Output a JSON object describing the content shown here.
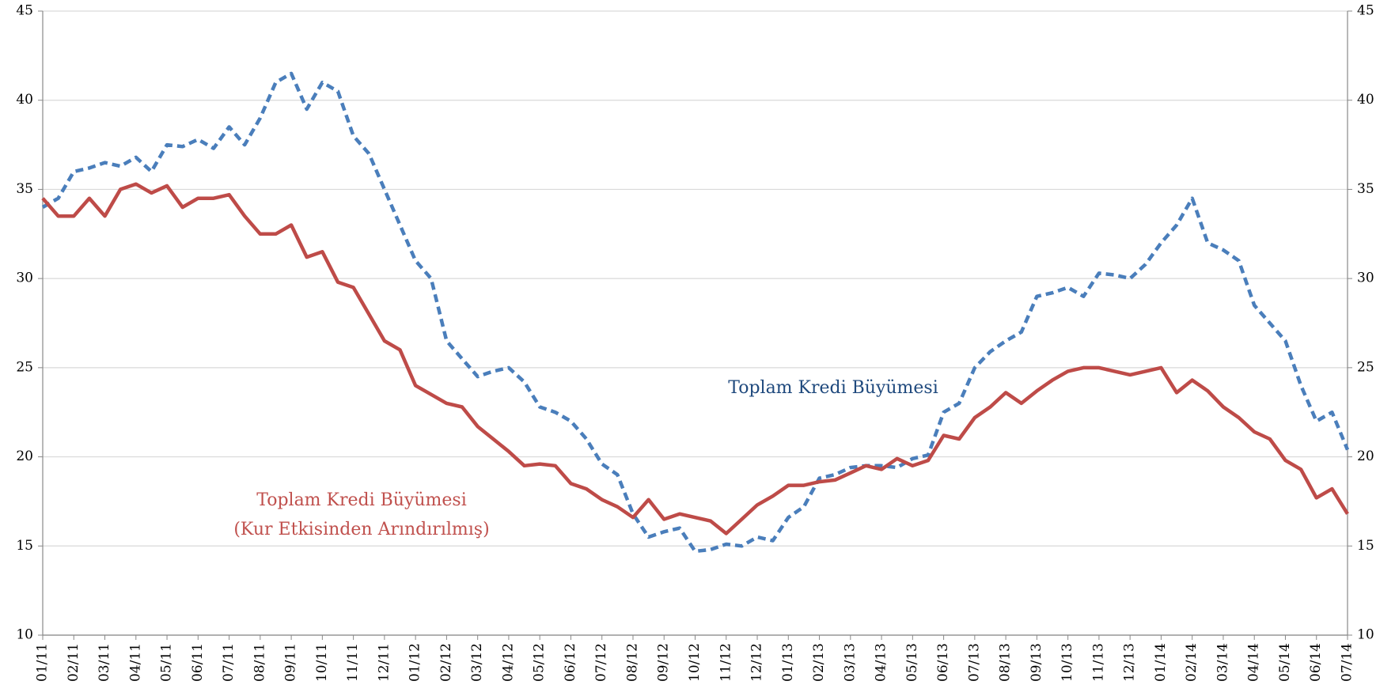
{
  "chart_data": {
    "type": "line",
    "categories": [
      "01/11",
      null,
      "02/11",
      null,
      "03/11",
      null,
      "04/11",
      null,
      "05/11",
      null,
      "06/11",
      null,
      "07/11",
      null,
      "08/11",
      null,
      "09/11",
      null,
      "10/11",
      null,
      "11/11",
      null,
      "12/11",
      null,
      "01/12",
      null,
      "02/12",
      null,
      "03/12",
      null,
      "04/12",
      null,
      "05/12",
      null,
      "06/12",
      null,
      "07/12",
      null,
      "08/12",
      null,
      "09/12",
      null,
      "10/12",
      null,
      "11/12",
      null,
      "12/12",
      null,
      "01/13",
      null,
      "02/13",
      null,
      "03/13",
      null,
      "04/13",
      null,
      "05/13",
      null,
      "06/13",
      null,
      "07/13",
      null,
      "08/13",
      null,
      "09/13",
      null,
      "10/13",
      null,
      "11/13",
      null,
      "12/13",
      null,
      "01/14",
      null,
      "02/14",
      null,
      "03/14",
      null,
      "04/14",
      null,
      "05/14",
      null,
      "06/14",
      null,
      "07/14"
    ],
    "series": [
      {
        "color": "#4a7ebb",
        "dashed": true,
        "axis": "y2",
        "values": [
          34,
          34.5,
          36,
          36.2,
          36.5,
          36.3,
          36.8,
          36,
          37.5,
          37.4,
          37.8,
          37.3,
          38.5,
          37.5,
          39,
          41,
          41.5,
          39.5,
          41,
          40.5,
          38,
          37,
          35,
          33,
          31,
          30,
          26.5,
          25.5,
          24.5,
          24.8,
          25,
          24.2,
          22.8,
          22.5,
          22,
          21,
          19.6,
          19,
          16.8,
          15.5,
          15.8,
          16,
          14.7,
          14.8,
          15.1,
          15,
          15.5,
          15.3,
          16.6,
          17.2,
          18.8,
          19,
          19.4,
          19.5,
          19.5,
          19.4,
          19.9,
          20.1,
          22.5,
          23,
          25,
          25.9,
          26.5,
          27,
          29,
          29.2,
          29.5,
          29,
          30.3,
          30.2,
          30,
          30.8,
          32,
          33,
          34.5,
          32,
          31.6,
          31,
          28.5,
          27.5,
          26.5,
          24,
          22,
          22.5,
          20.4
        ]
      },
      {
        "color": "#be4b48",
        "dashed": false,
        "values": [
          34.5,
          33.5,
          33.5,
          34.5,
          33.5,
          35,
          35.3,
          34.8,
          35.2,
          34,
          34.5,
          34.5,
          34.7,
          33.5,
          32.5,
          32.5,
          33,
          31.2,
          31.5,
          29.8,
          29.5,
          28,
          26.5,
          26,
          24,
          23.5,
          23,
          22.8,
          21.7,
          21,
          20.3,
          19.5,
          19.6,
          19.5,
          18.5,
          18.2,
          17.6,
          17.2,
          16.6,
          17.6,
          16.5,
          16.8,
          16.6,
          16.4,
          15.7,
          16.5,
          17.3,
          17.8,
          18.4,
          18.4,
          18.6,
          18.7,
          19.1,
          19.5,
          19.3,
          19.9,
          19.5,
          19.8,
          21.2,
          21,
          22.2,
          22.8,
          23.6,
          23,
          23.7,
          24.3,
          24.8,
          25,
          25,
          24.8,
          24.6,
          24.8,
          25,
          23.6,
          24.3,
          23.7,
          22.8,
          22.2,
          21.4,
          21,
          19.8,
          19.3,
          17.7,
          18.2,
          16.8
        ]
      }
    ],
    "annotations": [
      {
        "text": "Toplam Kredi Büyümesi",
        "color": "#1f497d"
      },
      {
        "text": "Toplam Kredi Büyümesi",
        "color": "#c0504d"
      },
      {
        "text": "(Kur Etkisinden Arındırılmış)",
        "color": "#c0504d"
      }
    ],
    "ylim": [
      10,
      45
    ],
    "yticks": [
      10,
      15,
      20,
      25,
      30,
      35,
      40,
      45
    ],
    "y2lim": [
      10,
      45
    ],
    "y2ticks": [
      10,
      15,
      20,
      25,
      30,
      35,
      40,
      45
    ],
    "grid": true
  }
}
